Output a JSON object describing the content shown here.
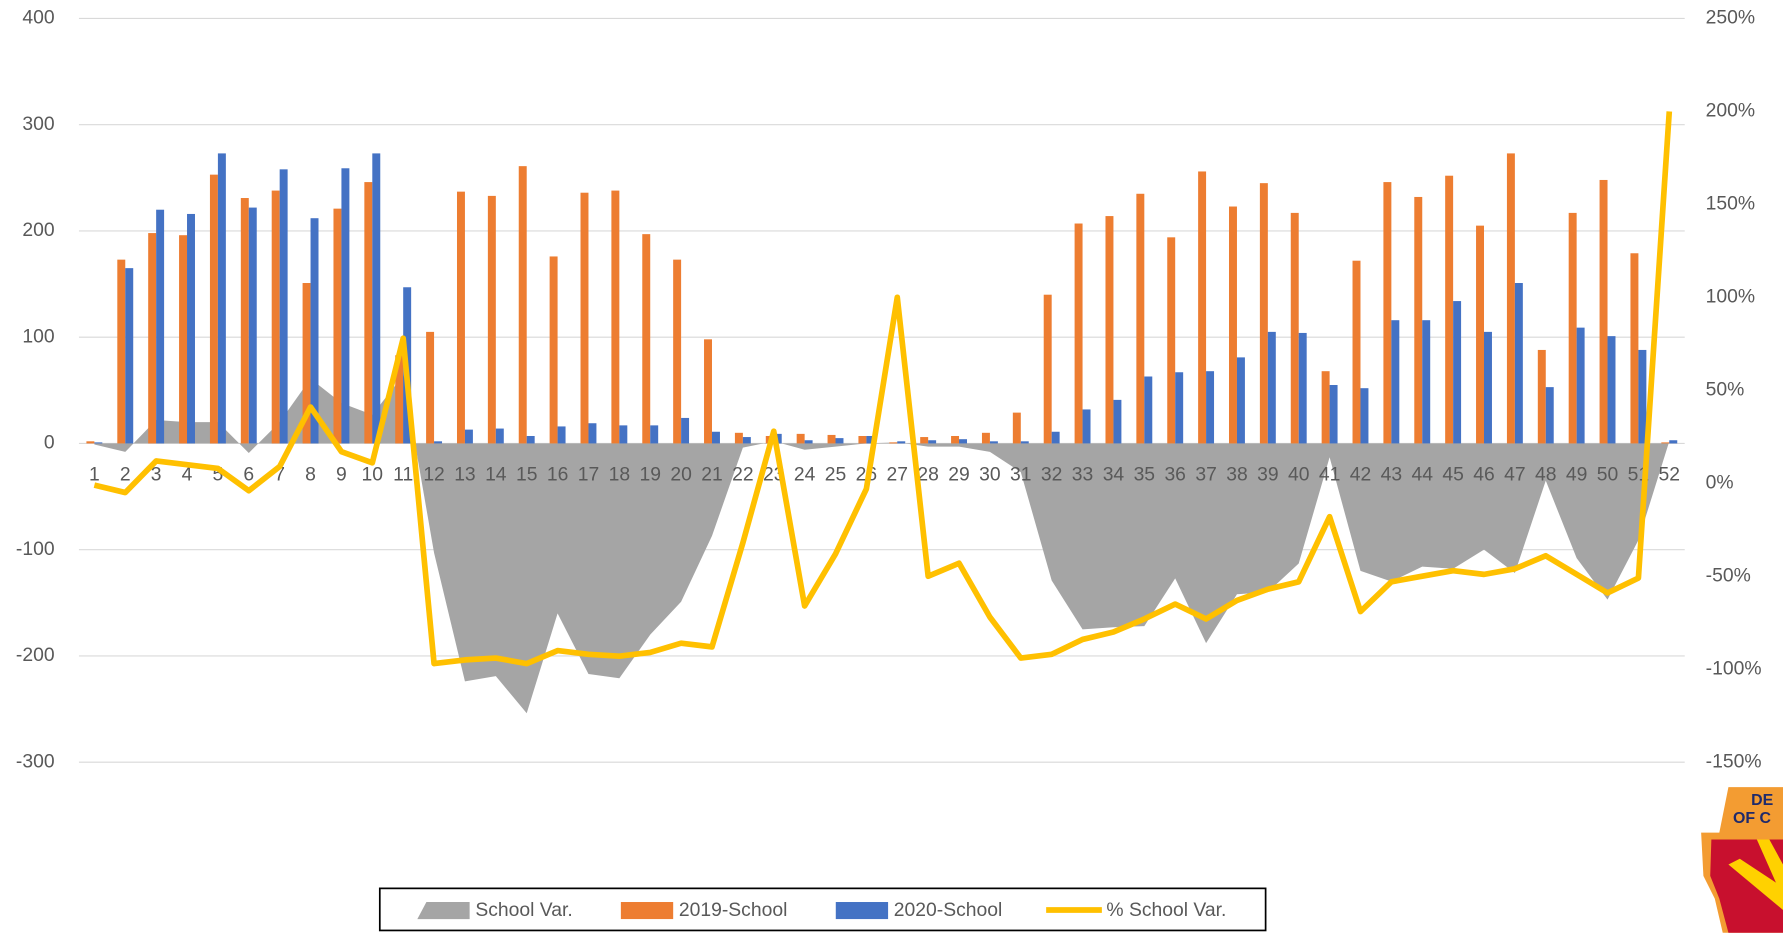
{
  "chart_data": {
    "type": "combo",
    "categories": [
      "1",
      "2",
      "3",
      "4",
      "5",
      "6",
      "7",
      "8",
      "9",
      "10",
      "11",
      "12",
      "13",
      "14",
      "15",
      "16",
      "17",
      "18",
      "19",
      "20",
      "21",
      "22",
      "23",
      "24",
      "25",
      "26",
      "27",
      "28",
      "29",
      "30",
      "31",
      "32",
      "33",
      "34",
      "35",
      "36",
      "37",
      "38",
      "39",
      "40",
      "41",
      "42",
      "43",
      "44",
      "45",
      "46",
      "47",
      "48",
      "49",
      "50",
      "51",
      "52"
    ],
    "series": [
      {
        "name": "School Var.",
        "type": "area",
        "color": "#a5a5a5",
        "values": [
          -1,
          -8,
          22,
          20,
          20,
          -9,
          20,
          61,
          38,
          27,
          64,
          -103,
          -224,
          -219,
          -254,
          -160,
          -217,
          -221,
          -180,
          -149,
          -87,
          -4,
          2,
          -6,
          -3,
          0,
          1,
          -3,
          -3,
          -8,
          -27,
          -129,
          -175,
          -173,
          -172,
          -127,
          -188,
          -142,
          -140,
          -113,
          -13,
          -120,
          -130,
          -116,
          -118,
          -100,
          -122,
          -35,
          -108,
          -147,
          -91,
          2
        ]
      },
      {
        "name": "2019-School",
        "type": "bar",
        "color": "#ed7d31",
        "values": [
          2,
          173,
          198,
          196,
          253,
          231,
          238,
          151,
          221,
          246,
          83,
          105,
          237,
          233,
          261,
          176,
          236,
          238,
          197,
          173,
          98,
          10,
          7,
          9,
          8,
          7,
          1,
          6,
          7,
          10,
          29,
          140,
          207,
          214,
          235,
          194,
          256,
          223,
          245,
          217,
          68,
          172,
          246,
          232,
          252,
          205,
          273,
          88,
          217,
          248,
          179,
          1
        ]
      },
      {
        "name": "2020-School",
        "type": "bar",
        "color": "#4472c4",
        "values": [
          1,
          165,
          220,
          216,
          273,
          222,
          258,
          212,
          259,
          273,
          147,
          2,
          13,
          14,
          7,
          16,
          19,
          17,
          17,
          24,
          11,
          6,
          9,
          3,
          5,
          7,
          2,
          3,
          4,
          2,
          2,
          11,
          32,
          41,
          63,
          67,
          68,
          81,
          105,
          104,
          55,
          52,
          116,
          116,
          134,
          105,
          151,
          53,
          109,
          101,
          88,
          3
        ]
      },
      {
        "name": "% School Var.",
        "type": "line",
        "axis": "y2",
        "color": "#ffc000",
        "values": [
          -1,
          -5,
          12,
          10,
          8,
          -4,
          9,
          41,
          17,
          11,
          78,
          -97,
          -95,
          -94,
          -97,
          -90,
          -92,
          -93,
          -91,
          -86,
          -88,
          -32,
          28,
          -66,
          -38,
          -3,
          100,
          -50,
          -43,
          -72,
          -94,
          -92,
          -84,
          -80,
          -73,
          -65,
          -73,
          -63,
          -57,
          -53,
          -18,
          -69,
          -53,
          -50,
          -47,
          -49,
          -46,
          -39,
          -49,
          -59,
          -51,
          200
        ]
      }
    ],
    "ylim": [
      -300,
      400
    ],
    "yticks": [
      -300,
      -200,
      -100,
      0,
      100,
      200,
      300,
      400
    ],
    "y2lim": [
      -150,
      250
    ],
    "y2ticks": [
      {
        "value": -150,
        "label": "-150%"
      },
      {
        "value": -100,
        "label": "-100%"
      },
      {
        "value": -50,
        "label": "-50%"
      },
      {
        "value": 0,
        "label": "0%"
      },
      {
        "value": 50,
        "label": "50%"
      },
      {
        "value": 100,
        "label": "100%"
      },
      {
        "value": 150,
        "label": "150%"
      },
      {
        "value": 200,
        "label": "200%"
      },
      {
        "value": 250,
        "label": "250%"
      }
    ],
    "grid": true,
    "legend": "bottom"
  },
  "logo": [
    "DE",
    "OF C"
  ]
}
